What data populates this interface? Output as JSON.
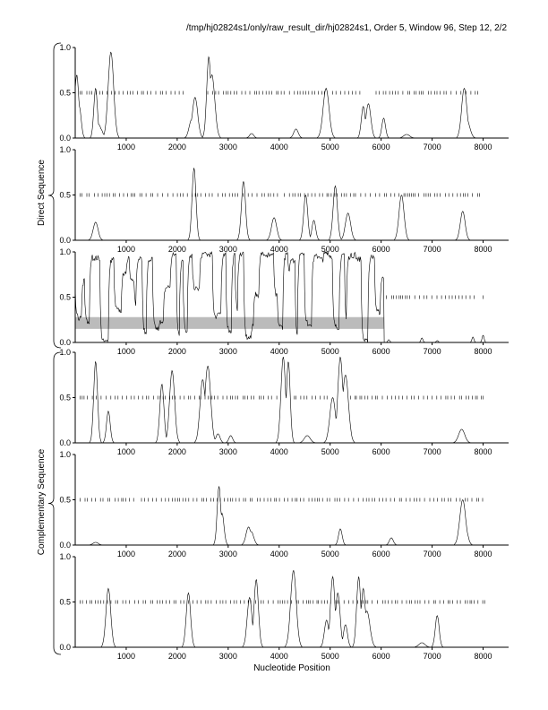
{
  "header": "/tmp/hj02824s1/only/raw_result_dir/hj02824s1, Order 5, Window 96, Step 12, 2/2",
  "group_labels": {
    "direct": "Direct Sequence",
    "complementary": "Complementary Sequence"
  },
  "xlabel": "Nucleotide Position",
  "x_ticks": [
    "1000",
    "2000",
    "3000",
    "4000",
    "5000",
    "6000",
    "7000",
    "8000"
  ],
  "y_ticks": [
    "0.0",
    "0.5",
    "1.0"
  ],
  "colors": {
    "line": "#000000",
    "axis": "#000000",
    "highlight": "#bbbbbb"
  },
  "chart_data": [
    {
      "type": "line",
      "group": "Direct Sequence",
      "frame": 1,
      "xlim": [
        0,
        8500
      ],
      "ylim": [
        0,
        1
      ],
      "peaks": [
        [
          30,
          0.7
        ],
        [
          80,
          0.35
        ],
        [
          400,
          0.55
        ],
        [
          460,
          0.15
        ],
        [
          500,
          0.1
        ],
        [
          700,
          0.95
        ],
        [
          2280,
          0.2
        ],
        [
          2350,
          0.45
        ],
        [
          2620,
          0.9
        ],
        [
          2680,
          0.7
        ],
        [
          3460,
          0.05
        ],
        [
          4330,
          0.1
        ],
        [
          4920,
          0.55
        ],
        [
          5650,
          0.35
        ],
        [
          5750,
          0.38
        ],
        [
          6050,
          0.22
        ],
        [
          6500,
          0.04
        ],
        [
          7630,
          0.55
        ],
        [
          7680,
          0.2
        ]
      ],
      "tick_marks": {
        "y": 0.5,
        "ranges": [
          [
            100,
            2200
          ],
          [
            2600,
            4100
          ],
          [
            4200,
            4950
          ],
          [
            5050,
            5600
          ],
          [
            5900,
            7900
          ]
        ],
        "density": 30
      }
    },
    {
      "type": "line",
      "group": "Direct Sequence",
      "frame": 2,
      "xlim": [
        0,
        8500
      ],
      "ylim": [
        0,
        1
      ],
      "peaks": [
        [
          400,
          0.2
        ],
        [
          2330,
          0.8
        ],
        [
          3300,
          0.65
        ],
        [
          3900,
          0.25
        ],
        [
          4520,
          0.5
        ],
        [
          4680,
          0.22
        ],
        [
          5100,
          0.6
        ],
        [
          5350,
          0.3
        ],
        [
          6400,
          0.5
        ],
        [
          7600,
          0.32
        ]
      ],
      "tick_marks": {
        "y": 0.5,
        "ranges": [
          [
            100,
            2700
          ],
          [
            2800,
            4000
          ],
          [
            4100,
            5500
          ],
          [
            5600,
            7950
          ]
        ],
        "density": 30
      }
    },
    {
      "type": "line",
      "group": "Direct Sequence",
      "frame": 3,
      "xlim": [
        0,
        8500
      ],
      "ylim": [
        0,
        1
      ],
      "dense_range": [
        0,
        6050
      ],
      "tail_peaks": [
        [
          6150,
          0.03
        ],
        [
          6800,
          0.05
        ],
        [
          7100,
          0.02
        ],
        [
          7800,
          0.06
        ],
        [
          8000,
          0.08
        ]
      ],
      "highlight": {
        "x": [
          0,
          6050
        ],
        "y": [
          0.15,
          0.28
        ]
      },
      "tick_marks": {
        "y": 0.5,
        "ranges": [
          [
            6100,
            7900
          ]
        ],
        "extra": [
          8000
        ],
        "density": 30
      }
    },
    {
      "type": "line",
      "group": "Complementary Sequence",
      "frame": 1,
      "xlim": [
        0,
        8500
      ],
      "ylim": [
        0,
        1
      ],
      "peaks": [
        [
          400,
          0.9
        ],
        [
          650,
          0.35
        ],
        [
          1700,
          0.65
        ],
        [
          1900,
          0.8
        ],
        [
          2500,
          0.7
        ],
        [
          2600,
          0.85
        ],
        [
          2800,
          0.1
        ],
        [
          3050,
          0.08
        ],
        [
          4080,
          0.95
        ],
        [
          4180,
          0.9
        ],
        [
          4550,
          0.08
        ],
        [
          5050,
          0.5
        ],
        [
          5200,
          0.95
        ],
        [
          5300,
          0.75
        ],
        [
          7580,
          0.15
        ]
      ],
      "tick_marks": {
        "y": 0.5,
        "ranges": [
          [
            100,
            4000
          ],
          [
            4300,
            5000
          ],
          [
            5400,
            8050
          ]
        ],
        "density": 30
      }
    },
    {
      "type": "line",
      "group": "Complementary Sequence",
      "frame": 2,
      "xlim": [
        0,
        8500
      ],
      "ylim": [
        0,
        1
      ],
      "peaks": [
        [
          400,
          0.03
        ],
        [
          2820,
          0.65
        ],
        [
          2880,
          0.35
        ],
        [
          3400,
          0.2
        ],
        [
          3450,
          0.15
        ],
        [
          5200,
          0.18
        ],
        [
          6200,
          0.08
        ],
        [
          7600,
          0.5
        ],
        [
          7650,
          0.2
        ]
      ],
      "tick_marks": {
        "y": 0.5,
        "ranges": [
          [
            100,
            1200
          ],
          [
            1300,
            8050
          ]
        ],
        "density": 30
      }
    },
    {
      "type": "line",
      "group": "Complementary Sequence",
      "frame": 3,
      "xlim": [
        0,
        8500
      ],
      "ylim": [
        0,
        1
      ],
      "peaks": [
        [
          650,
          0.65
        ],
        [
          2220,
          0.6
        ],
        [
          3420,
          0.55
        ],
        [
          3550,
          0.75
        ],
        [
          4280,
          0.85
        ],
        [
          4930,
          0.3
        ],
        [
          5050,
          0.78
        ],
        [
          5150,
          0.6
        ],
        [
          5300,
          0.25
        ],
        [
          5560,
          0.78
        ],
        [
          5650,
          0.65
        ],
        [
          5720,
          0.4
        ],
        [
          6800,
          0.05
        ],
        [
          7100,
          0.35
        ]
      ],
      "tick_marks": {
        "y": 0.5,
        "ranges": [
          [
            100,
            8050
          ]
        ],
        "density": 30
      }
    }
  ]
}
